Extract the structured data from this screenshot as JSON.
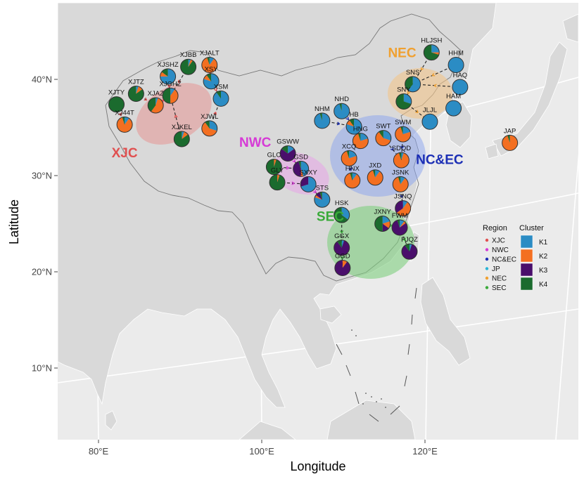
{
  "axes": {
    "xlabel": "Longitude",
    "ylabel": "Latitude",
    "x_ticks": [
      {
        "value": 80,
        "label": "80°E"
      },
      {
        "value": 100,
        "label": "100°E"
      },
      {
        "value": 120,
        "label": "120°E"
      }
    ],
    "y_ticks": [
      {
        "value": 10,
        "label": "10°N"
      },
      {
        "value": 20,
        "label": "20°N"
      },
      {
        "value": 30,
        "label": "30°N"
      },
      {
        "value": 40,
        "label": "40°N"
      }
    ],
    "xlim": [
      75,
      140
    ],
    "ylim": [
      2,
      47
    ]
  },
  "colors": {
    "K1": "#2b8cc4",
    "K2": "#f36f21",
    "K3": "#4a0f6b",
    "K4": "#1b6b2e",
    "XJC": "#e05050",
    "NWC": "#d63ad6",
    "NC&EC": "#1c2fb5",
    "JP": "#2ab4d6",
    "NEC": "#f0a030",
    "SEC": "#3aaa3a"
  },
  "legend": {
    "region_title": "Region",
    "regions": [
      "XJC",
      "NWC",
      "NC&EC",
      "JP",
      "NEC",
      "SEC"
    ],
    "cluster_title": "Cluster",
    "clusters": [
      "K1",
      "K2",
      "K3",
      "K4"
    ]
  },
  "regions": [
    {
      "name": "XJC",
      "label_lon": 83.2,
      "label_lat": 31.9
    },
    {
      "name": "NWC",
      "label_lon": 99.2,
      "label_lat": 33.0
    },
    {
      "name": "NC&EC",
      "label_lon": 121.8,
      "label_lat": 31.2
    },
    {
      "name": "NEC",
      "label_lon": 117.2,
      "label_lat": 42.3
    },
    {
      "name": "SEC",
      "label_lon": 108.4,
      "label_lat": 25.3
    }
  ],
  "sites": [
    {
      "name": "XJSHZ",
      "lon": 88.5,
      "lat": 40.3,
      "region": "XJC",
      "shares": {
        "K1": 0.75,
        "K2": 0.1,
        "K3": 0.0,
        "K4": 0.15
      }
    },
    {
      "name": "XJBB",
      "lon": 91.0,
      "lat": 41.3,
      "region": "XJC",
      "shares": {
        "K1": 0.05,
        "K2": 0.05,
        "K3": 0.0,
        "K4": 0.9
      }
    },
    {
      "name": "XJALT",
      "lon": 93.6,
      "lat": 41.5,
      "region": "XJC",
      "shares": {
        "K1": 0.1,
        "K2": 0.85,
        "K3": 0.0,
        "K4": 0.05
      }
    },
    {
      "name": "XJTZ",
      "lon": 84.6,
      "lat": 38.5,
      "region": "XJC",
      "shares": {
        "K1": 0.05,
        "K2": 0.1,
        "K3": 0.0,
        "K4": 0.85
      }
    },
    {
      "name": "XJAZ",
      "lon": 87.0,
      "lat": 37.3,
      "region": "XJC",
      "shares": {
        "K1": 0.05,
        "K2": 0.55,
        "K3": 0.0,
        "K4": 0.4
      }
    },
    {
      "name": "XJGHZ",
      "lon": 88.8,
      "lat": 38.3,
      "region": "XJC",
      "shares": {
        "K1": 0.1,
        "K2": 0.4,
        "K3": 0.0,
        "K4": 0.5
      }
    },
    {
      "name": "XSY",
      "lon": 93.8,
      "lat": 39.8,
      "region": "XJC",
      "shares": {
        "K1": 0.8,
        "K2": 0.1,
        "K3": 0.0,
        "K4": 0.1
      }
    },
    {
      "name": "XSM",
      "lon": 95.0,
      "lat": 38.0,
      "region": "XJC",
      "shares": {
        "K1": 0.9,
        "K2": 0.0,
        "K3": 0.0,
        "K4": 0.1
      }
    },
    {
      "name": "XJTY",
      "lon": 82.2,
      "lat": 37.4,
      "region": "XJC",
      "shares": {
        "K1": 0.0,
        "K2": 0.0,
        "K3": 0.0,
        "K4": 1.0
      }
    },
    {
      "name": "XJ44T",
      "lon": 83.2,
      "lat": 35.3,
      "region": "XJC",
      "shares": {
        "K1": 0.1,
        "K2": 0.85,
        "K3": 0.0,
        "K4": 0.05
      }
    },
    {
      "name": "XJKEL",
      "lon": 90.2,
      "lat": 33.8,
      "region": "XJC",
      "shares": {
        "K1": 0.05,
        "K2": 0.1,
        "K3": 0.0,
        "K4": 0.85
      }
    },
    {
      "name": "XJWL",
      "lon": 93.6,
      "lat": 34.9,
      "region": "XJC",
      "shares": {
        "K1": 0.3,
        "K2": 0.6,
        "K3": 0.0,
        "K4": 0.1
      }
    },
    {
      "name": "GSWW",
      "lon": 103.2,
      "lat": 32.3,
      "region": "NWC",
      "shares": {
        "K1": 0.15,
        "K2": 0.0,
        "K3": 0.7,
        "K4": 0.15
      }
    },
    {
      "name": "GLC",
      "lon": 101.5,
      "lat": 30.9,
      "region": "NWC",
      "shares": {
        "K1": 0.0,
        "K2": 0.05,
        "K3": 0.0,
        "K4": 0.95
      }
    },
    {
      "name": "GSD",
      "lon": 104.8,
      "lat": 30.7,
      "region": "NWC",
      "shares": {
        "K1": 0.45,
        "K2": 0.05,
        "K3": 0.45,
        "K4": 0.05
      }
    },
    {
      "name": "GLY",
      "lon": 101.9,
      "lat": 29.3,
      "region": "NWC",
      "shares": {
        "K1": 0.0,
        "K2": 0.05,
        "K3": 0.0,
        "K4": 0.95
      }
    },
    {
      "name": "SXXY",
      "lon": 105.7,
      "lat": 29.1,
      "region": "NWC",
      "shares": {
        "K1": 0.7,
        "K2": 0.0,
        "K3": 0.3,
        "K4": 0.0
      }
    },
    {
      "name": "STS",
      "lon": 107.4,
      "lat": 27.5,
      "region": "NWC",
      "shares": {
        "K1": 0.8,
        "K2": 0.05,
        "K3": 0.1,
        "K4": 0.05
      }
    },
    {
      "name": "NHD",
      "lon": 109.8,
      "lat": 36.7,
      "region": "NC&EC",
      "shares": {
        "K1": 0.95,
        "K2": 0.0,
        "K3": 0.0,
        "K4": 0.05
      }
    },
    {
      "name": "NHM",
      "lon": 107.4,
      "lat": 35.7,
      "region": "NC&EC",
      "shares": {
        "K1": 0.95,
        "K2": 0.0,
        "K3": 0.0,
        "K4": 0.05
      }
    },
    {
      "name": "HB",
      "lon": 111.3,
      "lat": 35.1,
      "region": "NC&EC",
      "shares": {
        "K1": 0.8,
        "K2": 0.1,
        "K3": 0.0,
        "K4": 0.1
      }
    },
    {
      "name": "HNG",
      "lon": 112.1,
      "lat": 33.6,
      "region": "NC&EC",
      "shares": {
        "K1": 0.2,
        "K2": 0.75,
        "K3": 0.0,
        "K4": 0.05
      }
    },
    {
      "name": "SWT",
      "lon": 114.9,
      "lat": 33.9,
      "region": "NC&EC",
      "shares": {
        "K1": 0.3,
        "K2": 0.6,
        "K3": 0.0,
        "K4": 0.1
      }
    },
    {
      "name": "SWM",
      "lon": 117.3,
      "lat": 34.3,
      "region": "NC&EC",
      "shares": {
        "K1": 0.2,
        "K2": 0.75,
        "K3": 0.0,
        "K4": 0.05
      }
    },
    {
      "name": "XCQ",
      "lon": 110.7,
      "lat": 31.8,
      "region": "NC&EC",
      "shares": {
        "K1": 0.2,
        "K2": 0.75,
        "K3": 0.0,
        "K4": 0.05
      }
    },
    {
      "name": "SDQD",
      "lon": 117.1,
      "lat": 31.6,
      "region": "NC&EC",
      "shares": {
        "K1": 0.05,
        "K2": 0.9,
        "K3": 0.0,
        "K4": 0.05
      }
    },
    {
      "name": "HNX",
      "lon": 111.1,
      "lat": 29.5,
      "region": "NC&EC",
      "shares": {
        "K1": 0.1,
        "K2": 0.85,
        "K3": 0.0,
        "K4": 0.05
      }
    },
    {
      "name": "JXD",
      "lon": 113.9,
      "lat": 29.8,
      "region": "NC&EC",
      "shares": {
        "K1": 0.1,
        "K2": 0.85,
        "K3": 0.0,
        "K4": 0.05
      }
    },
    {
      "name": "JSNK",
      "lon": 117.0,
      "lat": 29.1,
      "region": "NC&EC",
      "shares": {
        "K1": 0.1,
        "K2": 0.85,
        "K3": 0.0,
        "K4": 0.05
      }
    },
    {
      "name": "JSNQ",
      "lon": 117.3,
      "lat": 26.6,
      "region": "NC&EC",
      "shares": {
        "K1": 0.1,
        "K2": 0.55,
        "K3": 0.35,
        "K4": 0.0
      }
    },
    {
      "name": "HLJSH",
      "lon": 120.8,
      "lat": 42.8,
      "region": "NEC",
      "shares": {
        "K1": 0.25,
        "K2": 0.05,
        "K3": 0.0,
        "K4": 0.7
      }
    },
    {
      "name": "HHM",
      "lon": 123.8,
      "lat": 41.5,
      "region": "NEC",
      "shares": {
        "K1": 1.0,
        "K2": 0.0,
        "K3": 0.0,
        "K4": 0.0
      }
    },
    {
      "name": "SNS",
      "lon": 118.5,
      "lat": 39.5,
      "region": "NEC",
      "shares": {
        "K1": 0.6,
        "K2": 0.0,
        "K3": 0.0,
        "K4": 0.4
      }
    },
    {
      "name": "HAQ",
      "lon": 124.3,
      "lat": 39.2,
      "region": "NEC",
      "shares": {
        "K1": 1.0,
        "K2": 0.0,
        "K3": 0.0,
        "K4": 0.0
      }
    },
    {
      "name": "SNY",
      "lon": 117.4,
      "lat": 37.7,
      "region": "NEC",
      "shares": {
        "K1": 0.3,
        "K2": 0.0,
        "K3": 0.0,
        "K4": 0.7
      }
    },
    {
      "name": "HAM",
      "lon": 123.5,
      "lat": 37.0,
      "region": "NEC",
      "shares": {
        "K1": 1.0,
        "K2": 0.0,
        "K3": 0.0,
        "K4": 0.0
      }
    },
    {
      "name": "JLJL",
      "lon": 120.6,
      "lat": 35.6,
      "region": "NEC",
      "shares": {
        "K1": 1.0,
        "K2": 0.0,
        "K3": 0.0,
        "K4": 0.0
      }
    },
    {
      "name": "JAP",
      "lon": 130.4,
      "lat": 33.4,
      "region": "JP",
      "shares": {
        "K1": 0.0,
        "K2": 0.95,
        "K3": 0.0,
        "K4": 0.05
      }
    },
    {
      "name": "HSK",
      "lon": 109.8,
      "lat": 25.9,
      "region": "SEC",
      "shares": {
        "K1": 0.35,
        "K2": 0.0,
        "K3": 0.0,
        "K4": 0.65
      }
    },
    {
      "name": "JXNY",
      "lon": 114.8,
      "lat": 25.0,
      "region": "SEC",
      "shares": {
        "K1": 0.2,
        "K2": 0.15,
        "K3": 0.15,
        "K4": 0.5
      }
    },
    {
      "name": "FWM",
      "lon": 116.9,
      "lat": 24.6,
      "region": "SEC",
      "shares": {
        "K1": 0.1,
        "K2": 0.05,
        "K3": 0.8,
        "K4": 0.05
      }
    },
    {
      "name": "GGX",
      "lon": 109.8,
      "lat": 22.5,
      "region": "SEC",
      "shares": {
        "K1": 0.05,
        "K2": 0.0,
        "K3": 0.85,
        "K4": 0.1
      }
    },
    {
      "name": "GGD",
      "lon": 109.9,
      "lat": 20.4,
      "region": "SEC",
      "shares": {
        "K1": 0.0,
        "K2": 0.1,
        "K3": 0.9,
        "K4": 0.0
      }
    },
    {
      "name": "FJQZ",
      "lon": 118.1,
      "lat": 22.1,
      "region": "SEC",
      "shares": {
        "K1": 0.05,
        "K2": 0.0,
        "K3": 0.85,
        "K4": 0.1
      }
    }
  ]
}
